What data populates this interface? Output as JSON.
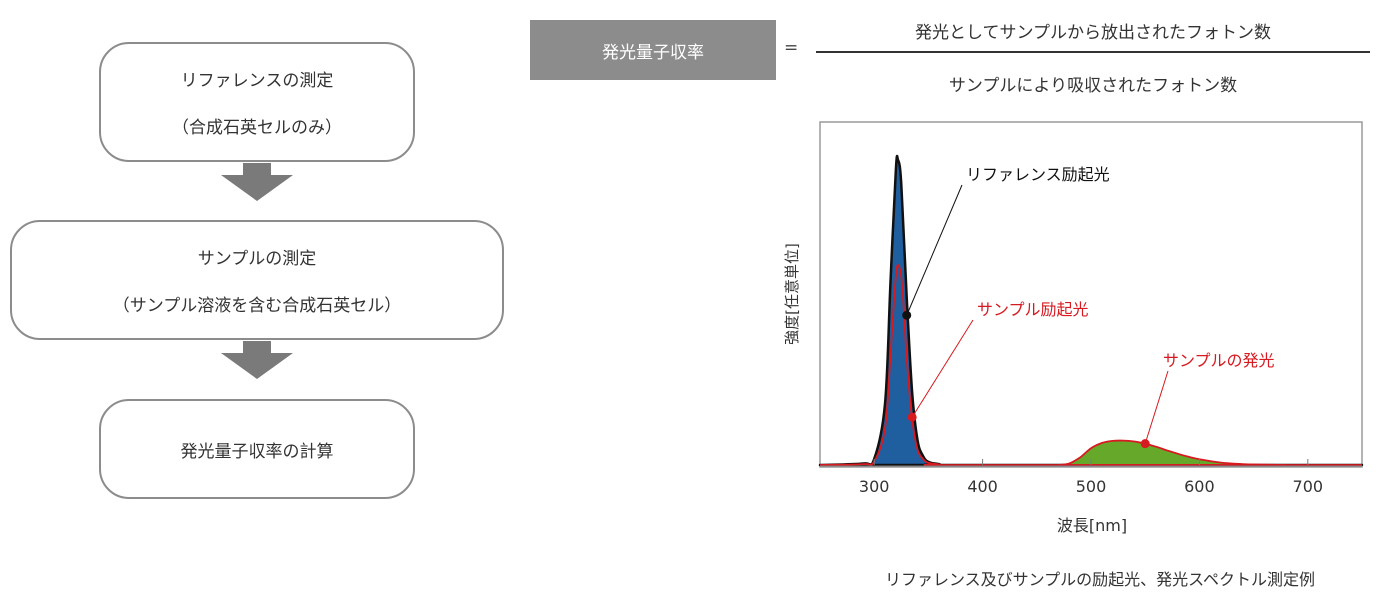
{
  "flow": {
    "step1": {
      "line1": "リファレンスの測定",
      "line2": "（合成石英セルのみ）"
    },
    "step2": {
      "line1": "サンプルの測定",
      "line2": "（サンプル溶液を含む合成石英セル）"
    },
    "step3": {
      "line1": "発光量子収率の計算"
    }
  },
  "formula": {
    "label": "発光量子収率",
    "equals": "=",
    "numerator": "発光としてサンプルから放出されたフォトン数",
    "denominator": "サンプルにより吸収されたフォトン数"
  },
  "colors": {
    "reference_fill": "#1f5fa0",
    "reference_outline": "#111111",
    "sample_line": "#d71920",
    "emission_fill": "#66a82a"
  },
  "chart_data": {
    "type": "area",
    "xlabel": "波長[nm]",
    "ylabel": "強度[任意単位]",
    "xlim": [
      250,
      750
    ],
    "x_ticks": [
      300,
      400,
      500,
      600,
      700
    ],
    "series": [
      {
        "name": "リファレンス励起光",
        "x": [
          250,
          290,
          300,
          310,
          315,
          320,
          322,
          325,
          330,
          335,
          340,
          345,
          350,
          360,
          380,
          750
        ],
        "y": [
          0,
          0.5,
          2,
          20,
          60,
          97,
          100,
          92,
          55,
          24,
          8,
          3,
          1,
          0.3,
          0,
          0
        ]
      },
      {
        "name": "サンプル励起光",
        "x": [
          250,
          290,
          300,
          310,
          315,
          320,
          323,
          326,
          330,
          335,
          340,
          345,
          350,
          360,
          380,
          750
        ],
        "y": [
          0,
          0.3,
          1.2,
          12,
          36,
          62,
          65,
          58,
          35,
          15,
          5,
          2,
          0.7,
          0.2,
          0,
          0
        ]
      },
      {
        "name": "サンプルの発光",
        "x": [
          470,
          480,
          490,
          500,
          510,
          520,
          530,
          540,
          550,
          560,
          570,
          580,
          590,
          600,
          620,
          640,
          660,
          680
        ],
        "y": [
          0,
          0.5,
          2.5,
          5.5,
          7.2,
          7.9,
          8.0,
          7.7,
          7.0,
          6.0,
          4.8,
          3.7,
          2.7,
          1.9,
          0.8,
          0.3,
          0.1,
          0
        ]
      }
    ],
    "annotations": [
      "リファレンス励起光",
      "サンプル励起光",
      "サンプルの発光"
    ]
  },
  "caption": "リファレンス及びサンプルの励起光、発光スペクトル測定例"
}
